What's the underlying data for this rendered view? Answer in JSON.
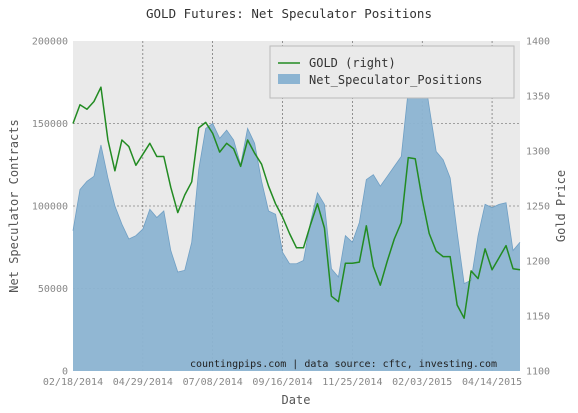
{
  "chart_data": {
    "type": "area",
    "title": "GOLD Futures: Net Speculator Positions",
    "xlabel": "Date",
    "ylabel_left": "Net Speculator Contracts",
    "ylabel_right": "Gold Price",
    "ylim_left": [
      0,
      200000
    ],
    "ylim_right": [
      1100,
      1400
    ],
    "yticks_left": [
      "0",
      "50000",
      "100000",
      "150000",
      "200000"
    ],
    "yticks_right": [
      "1100",
      "1150",
      "1200",
      "1250",
      "1300",
      "1350",
      "1400"
    ],
    "xticks": [
      "02/18/2014",
      "04/29/2014",
      "07/08/2014",
      "09/16/2014",
      "11/25/2014",
      "02/03/2015",
      "04/14/2015"
    ],
    "grid": true,
    "legend_position": "top-right",
    "annotation": "countingpips.com | data source: cftc, investing.com",
    "week_start_label": "02/18/2014",
    "series": [
      {
        "name": "GOLD (right)",
        "axis": "right",
        "style": "line",
        "color": "#228b22",
        "values": [
          1325,
          1342,
          1338,
          1345,
          1358,
          1310,
          1282,
          1310,
          1304,
          1287,
          1297,
          1307,
          1295,
          1295,
          1267,
          1244,
          1260,
          1272,
          1321,
          1326,
          1316,
          1299,
          1307,
          1302,
          1286,
          1310,
          1298,
          1288,
          1268,
          1252,
          1240,
          1225,
          1212,
          1212,
          1233,
          1252,
          1230,
          1168,
          1163,
          1198,
          1198,
          1199,
          1232,
          1195,
          1178,
          1200,
          1220,
          1235,
          1294,
          1293,
          1256,
          1225,
          1209,
          1204,
          1204,
          1160,
          1148,
          1191,
          1184,
          1211,
          1192,
          1203,
          1214,
          1193,
          1192
        ]
      },
      {
        "name": "Net_Speculator_Positions",
        "axis": "left",
        "style": "area",
        "color": "#8cb4d2",
        "values": [
          85000,
          110000,
          115000,
          118000,
          137000,
          117000,
          100000,
          89000,
          80000,
          82000,
          86000,
          98000,
          93000,
          97000,
          73000,
          60000,
          61000,
          78000,
          122000,
          147000,
          150000,
          141000,
          146000,
          140000,
          125000,
          147000,
          138000,
          115000,
          97000,
          95000,
          72000,
          65000,
          65000,
          67000,
          90000,
          108000,
          101000,
          62000,
          57000,
          82000,
          78000,
          90000,
          116000,
          119000,
          112000,
          118000,
          124000,
          130000,
          170000,
          190000,
          188000,
          160000,
          133000,
          128000,
          117000,
          84000,
          53000,
          55000,
          82000,
          101000,
          99000,
          101000,
          102000,
          73000,
          78000
        ]
      }
    ]
  }
}
